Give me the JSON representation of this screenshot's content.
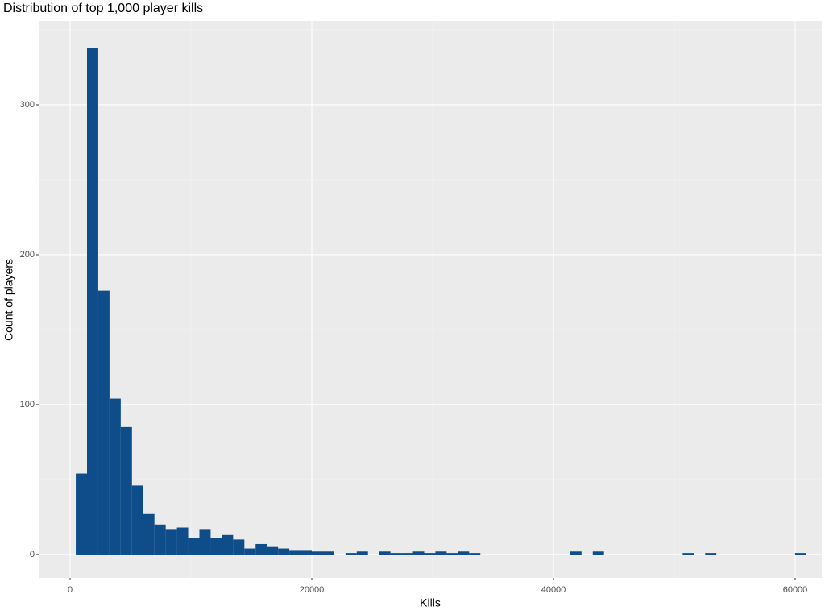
{
  "chart_data": {
    "type": "histogram",
    "title": "Distribution of top 1,000 player kills",
    "x_label": "Kills",
    "y_label": "Count of players",
    "bins": [
      470,
      1400,
      2330,
      3260,
      4190,
      5120,
      6050,
      6980,
      7910,
      8840,
      9770,
      10700,
      11630,
      12560,
      13490,
      14420,
      15350,
      16280,
      17210,
      18140,
      19070,
      20000,
      20930,
      21860,
      22790,
      23720,
      24650,
      25580,
      26510,
      27440,
      28370,
      29300,
      30230,
      31160,
      32090,
      33020,
      33950,
      34880,
      35810,
      36740,
      37670,
      38600,
      39530,
      40460,
      41390,
      42320,
      43250,
      44180,
      45110,
      46040,
      46970,
      47900,
      48830,
      49760,
      50690,
      51620,
      52550,
      53480,
      54410,
      55340,
      56270,
      57200,
      58130,
      59060,
      59990,
      60920
    ],
    "values": [
      54,
      338,
      176,
      104,
      85,
      46,
      27,
      20,
      17,
      18,
      11,
      17,
      11,
      13,
      10,
      4,
      7,
      5,
      4,
      3,
      3,
      2,
      2,
      0,
      1,
      2,
      0,
      2,
      1,
      1,
      2,
      1,
      2,
      1,
      2,
      1,
      0,
      0,
      0,
      0,
      0,
      0,
      0,
      0,
      2,
      0,
      2,
      0,
      0,
      0,
      0,
      0,
      0,
      0,
      1,
      0,
      1,
      0,
      0,
      0,
      0,
      0,
      0,
      0,
      1
    ],
    "color": "#0e4c8a",
    "xlim": [
      -2600,
      62200
    ],
    "xticks": [
      0,
      20000,
      40000,
      60000
    ],
    "ylim": [
      -15.6,
      355.9
    ],
    "yticks": [
      0,
      100,
      200,
      300
    ],
    "grid": true
  }
}
